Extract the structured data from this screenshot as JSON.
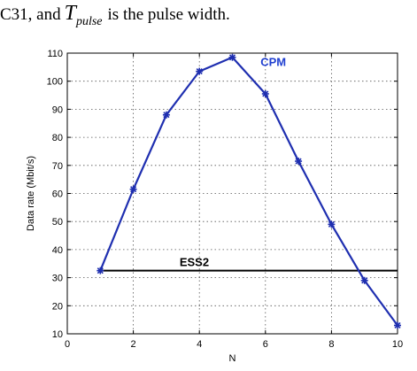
{
  "caption": {
    "pre": "C31, and",
    "symbol": "T",
    "subscript": "pulse",
    "post": "is the pulse width."
  },
  "colors": {
    "cpm": "#1f2fb0",
    "ess2": "#000000",
    "cpm_label": "#1f3fd0",
    "grid": "#555555",
    "axis": "#000000"
  },
  "chart_data": {
    "type": "line",
    "xlabel": "N",
    "ylabel": "Data rate (Mbit/s)",
    "xlim": [
      0,
      10
    ],
    "ylim": [
      10,
      110
    ],
    "xticks": [
      0,
      2,
      4,
      6,
      8,
      10
    ],
    "yticks": [
      10,
      20,
      30,
      40,
      50,
      60,
      70,
      80,
      90,
      100,
      110
    ],
    "grid": true,
    "series": [
      {
        "name": "CPM",
        "x": [
          1,
          2,
          3,
          4,
          5,
          6,
          7,
          8,
          9,
          10
        ],
        "y": [
          32.5,
          61.5,
          88,
          103.5,
          108.5,
          95.5,
          71.5,
          49,
          29,
          13
        ],
        "marker": "asterisk"
      },
      {
        "name": "ESS2",
        "x": [
          1,
          10
        ],
        "y": [
          32.5,
          32.5
        ],
        "marker": "none"
      }
    ]
  }
}
